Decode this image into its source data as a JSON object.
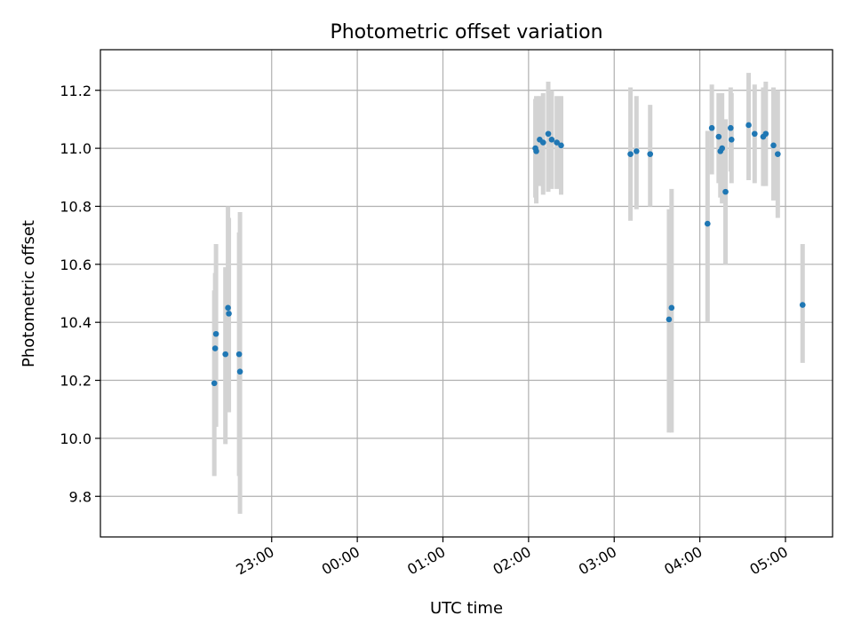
{
  "chart_data": {
    "type": "scatter",
    "title": "Photometric offset variation",
    "xlabel": "UTC time",
    "ylabel": "Photometric offset",
    "xlim": [
      21.0,
      29.55
    ],
    "ylim": [
      9.66,
      11.34
    ],
    "grid": true,
    "x_ticks": [
      {
        "value": 23,
        "label": "23:00"
      },
      {
        "value": 24,
        "label": "00:00"
      },
      {
        "value": 25,
        "label": "01:00"
      },
      {
        "value": 26,
        "label": "02:00"
      },
      {
        "value": 27,
        "label": "03:00"
      },
      {
        "value": 28,
        "label": "04:00"
      },
      {
        "value": 29,
        "label": "05:00"
      }
    ],
    "y_ticks": [
      {
        "value": 9.8,
        "label": "9.8"
      },
      {
        "value": 10.0,
        "label": "10.0"
      },
      {
        "value": 10.2,
        "label": "10.2"
      },
      {
        "value": 10.4,
        "label": "10.4"
      },
      {
        "value": 10.6,
        "label": "10.6"
      },
      {
        "value": 10.8,
        "label": "10.8"
      },
      {
        "value": 11.0,
        "label": "11.0"
      },
      {
        "value": 11.2,
        "label": "11.2"
      }
    ],
    "point_color": "#1f77b4",
    "errorbar_color": "#d3d3d3",
    "points": [
      {
        "x": 22.33,
        "y": 10.19,
        "lo": 9.87,
        "hi": 10.51
      },
      {
        "x": 22.34,
        "y": 10.31,
        "lo": 10.04,
        "hi": 10.57
      },
      {
        "x": 22.35,
        "y": 10.36,
        "lo": 10.04,
        "hi": 10.67
      },
      {
        "x": 22.46,
        "y": 10.29,
        "lo": 9.98,
        "hi": 10.59
      },
      {
        "x": 22.49,
        "y": 10.45,
        "lo": 10.1,
        "hi": 10.8
      },
      {
        "x": 22.5,
        "y": 10.43,
        "lo": 10.09,
        "hi": 10.76
      },
      {
        "x": 22.62,
        "y": 10.29,
        "lo": 9.87,
        "hi": 10.71
      },
      {
        "x": 22.63,
        "y": 10.23,
        "lo": 9.74,
        "hi": 10.78
      },
      {
        "x": 26.08,
        "y": 11.0,
        "lo": 10.83,
        "hi": 11.17
      },
      {
        "x": 26.09,
        "y": 10.99,
        "lo": 10.81,
        "hi": 11.18
      },
      {
        "x": 26.13,
        "y": 11.03,
        "lo": 10.87,
        "hi": 11.18
      },
      {
        "x": 26.17,
        "y": 11.02,
        "lo": 10.84,
        "hi": 11.19
      },
      {
        "x": 26.23,
        "y": 11.05,
        "lo": 10.85,
        "hi": 11.23
      },
      {
        "x": 26.27,
        "y": 11.03,
        "lo": 10.86,
        "hi": 11.2
      },
      {
        "x": 26.33,
        "y": 11.02,
        "lo": 10.86,
        "hi": 11.18
      },
      {
        "x": 26.38,
        "y": 11.01,
        "lo": 10.84,
        "hi": 11.18
      },
      {
        "x": 27.19,
        "y": 10.98,
        "lo": 10.75,
        "hi": 11.21
      },
      {
        "x": 27.26,
        "y": 10.99,
        "lo": 10.79,
        "hi": 11.18
      },
      {
        "x": 27.42,
        "y": 10.98,
        "lo": 10.8,
        "hi": 11.15
      },
      {
        "x": 27.64,
        "y": 10.41,
        "lo": 10.02,
        "hi": 10.79
      },
      {
        "x": 27.67,
        "y": 10.45,
        "lo": 10.02,
        "hi": 10.86
      },
      {
        "x": 28.09,
        "y": 10.74,
        "lo": 10.4,
        "hi": 11.06
      },
      {
        "x": 28.14,
        "y": 11.07,
        "lo": 10.91,
        "hi": 11.22
      },
      {
        "x": 28.22,
        "y": 11.04,
        "lo": 10.88,
        "hi": 11.19
      },
      {
        "x": 28.24,
        "y": 10.99,
        "lo": 10.83,
        "hi": 11.15
      },
      {
        "x": 28.26,
        "y": 11.0,
        "lo": 10.81,
        "hi": 11.19
      },
      {
        "x": 28.3,
        "y": 10.85,
        "lo": 10.6,
        "hi": 11.1
      },
      {
        "x": 28.36,
        "y": 11.07,
        "lo": 10.92,
        "hi": 11.21
      },
      {
        "x": 28.37,
        "y": 11.03,
        "lo": 10.88,
        "hi": 11.19
      },
      {
        "x": 28.57,
        "y": 11.08,
        "lo": 10.89,
        "hi": 11.26
      },
      {
        "x": 28.64,
        "y": 11.05,
        "lo": 10.88,
        "hi": 11.22
      },
      {
        "x": 28.74,
        "y": 11.04,
        "lo": 10.87,
        "hi": 11.21
      },
      {
        "x": 28.77,
        "y": 11.05,
        "lo": 10.87,
        "hi": 11.23
      },
      {
        "x": 28.86,
        "y": 11.01,
        "lo": 10.82,
        "hi": 11.21
      },
      {
        "x": 28.91,
        "y": 10.98,
        "lo": 10.76,
        "hi": 11.2
      },
      {
        "x": 29.2,
        "y": 10.46,
        "lo": 10.26,
        "hi": 10.67
      }
    ]
  }
}
